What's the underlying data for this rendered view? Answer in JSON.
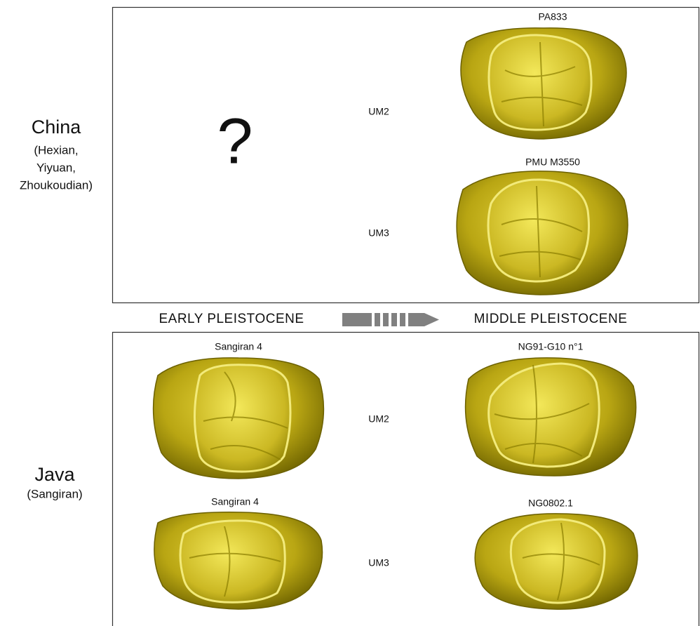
{
  "regions": [
    {
      "name": "China",
      "sites": [
        "(Hexian,",
        "Yiyuan,",
        "Zhoukoudian)"
      ],
      "unknown": "?",
      "teeth": [
        {
          "type": "UM2",
          "specimen": "PA833"
        },
        {
          "type": "UM3",
          "specimen": "PMU M3550"
        }
      ]
    },
    {
      "name": "Java",
      "sites": [
        "(Sangiran)"
      ],
      "teeth": [
        {
          "type": "UM2",
          "early": "Sangiran 4",
          "specimen": "NG91-G10 n°1"
        },
        {
          "type": "UM3",
          "early": "Sangiran 4",
          "specimen": "NG0802.1"
        }
      ]
    }
  ],
  "timeline": {
    "from": "EARLY PLEISTOCENE",
    "to": "MIDDLE PLEISTOCENE"
  }
}
